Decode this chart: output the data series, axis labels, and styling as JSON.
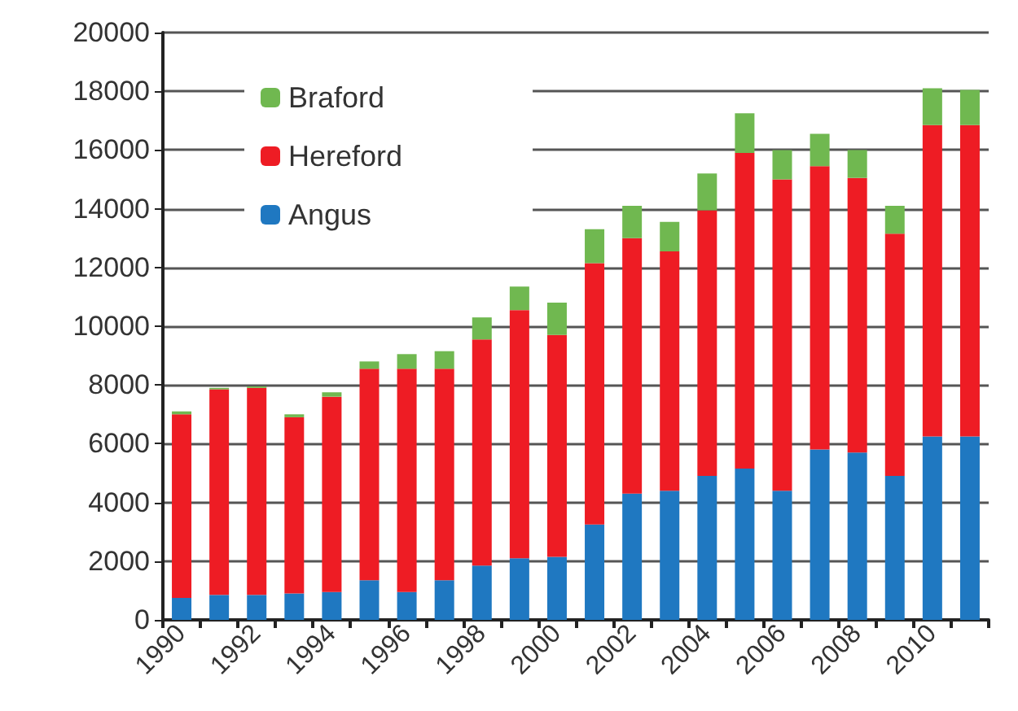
{
  "chart_data": {
    "type": "bar",
    "stacked": true,
    "categories": [
      "1990",
      null,
      "1992",
      null,
      "1994",
      null,
      "1996",
      null,
      "1998",
      null,
      "2000",
      null,
      "2002",
      null,
      "2004",
      null,
      "2006",
      null,
      "2008",
      null,
      "2010",
      null
    ],
    "series": [
      {
        "name": "Angus",
        "color": "#1f78c1",
        "values": [
          750,
          850,
          850,
          900,
          950,
          1350,
          950,
          1350,
          1850,
          2100,
          2150,
          3250,
          4300,
          4400,
          4900,
          5150,
          4400,
          5800,
          5700,
          4900,
          6250,
          6250
        ]
      },
      {
        "name": "Hereford",
        "color": "#ee1c24",
        "values": [
          6250,
          7000,
          7050,
          6000,
          6650,
          7200,
          7600,
          7200,
          7700,
          8450,
          7550,
          8900,
          8700,
          8150,
          9050,
          10750,
          10600,
          9650,
          9350,
          8250,
          10600,
          10600
        ]
      },
      {
        "name": "Braford",
        "color": "#70b850",
        "values": [
          100,
          50,
          50,
          100,
          150,
          250,
          500,
          600,
          750,
          800,
          1100,
          1150,
          1100,
          1000,
          1250,
          1350,
          1000,
          1100,
          950,
          950,
          1250,
          1200
        ]
      }
    ],
    "ylim": [
      0,
      20000
    ],
    "yticks": [
      0,
      2000,
      4000,
      6000,
      8000,
      10000,
      12000,
      14000,
      16000,
      18000,
      20000
    ],
    "grid": "y",
    "legend": "top left"
  }
}
